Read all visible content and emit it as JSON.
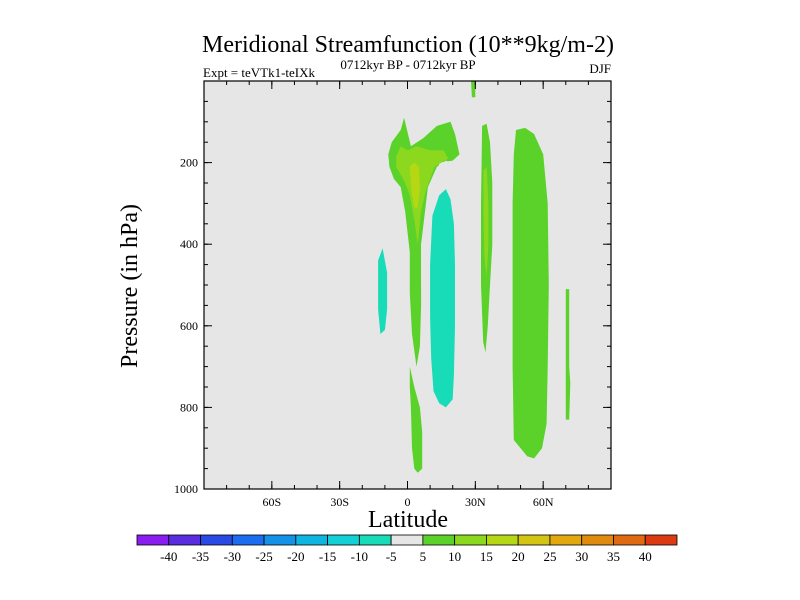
{
  "chart_data": {
    "type": "contour",
    "title": "Meridional Streamfunction (10**9kg/m-2)",
    "left_string": "Expt = teVTk1-teIXk",
    "center_string": "0712kyr BP - 0712kyr BP",
    "right_string": "DJF",
    "xlabel": "Latitude",
    "ylabel": "Pressure (in hPa)",
    "xlim": [
      -90,
      90
    ],
    "ylim": [
      1000,
      0
    ],
    "x_ticks": [
      {
        "value": -60,
        "label": "60S"
      },
      {
        "value": -30,
        "label": "30S"
      },
      {
        "value": 0,
        "label": "0"
      },
      {
        "value": 30,
        "label": "30N"
      },
      {
        "value": 60,
        "label": "60N"
      }
    ],
    "y_ticks": [
      {
        "value": 200,
        "label": "200"
      },
      {
        "value": 400,
        "label": "400"
      },
      {
        "value": 600,
        "label": "600"
      },
      {
        "value": 800,
        "label": "800"
      },
      {
        "value": 1000,
        "label": "1000"
      }
    ],
    "y_minor_step": 50,
    "x_minor_step": 10,
    "background_color": "#e6e6e6",
    "colorbar": {
      "levels": [
        -40,
        -35,
        -30,
        -25,
        -20,
        -15,
        -10,
        -5,
        5,
        10,
        15,
        20,
        25,
        30,
        35,
        40
      ],
      "labels": [
        "-40",
        "-35",
        "-30",
        "-25",
        "-20",
        "-15",
        "-10",
        "-5",
        "5",
        "10",
        "15",
        "20",
        "25",
        "30",
        "35",
        "40"
      ],
      "colors": [
        "#8a1ef0",
        "#5a2ee0",
        "#2a4ae6",
        "#1a6cf0",
        "#1492e8",
        "#10b4e0",
        "#12d0d6",
        "#18dcb8",
        "#e6e6e6",
        "#5ad22a",
        "#8cd81e",
        "#b6d814",
        "#d4c414",
        "#e2a80e",
        "#e08a0e",
        "#e06a12",
        "#dc3a10"
      ]
    },
    "regions": [
      {
        "name": "region-sh-thin-1",
        "value": -5,
        "polygon": [
          [
            -66.5,
            50
          ],
          [
            -65,
            50
          ],
          [
            -64.5,
            300
          ],
          [
            -64.5,
            600
          ],
          [
            -65,
            810
          ],
          [
            -66,
            800
          ],
          [
            -66.5,
            600
          ],
          [
            -66.5,
            300
          ]
        ]
      },
      {
        "name": "region-sh-thin-2",
        "value": -5,
        "polygon": [
          [
            -64.5,
            -10
          ],
          [
            -61.5,
            -10
          ],
          [
            -61.5,
            300
          ],
          [
            -62,
            700
          ],
          [
            -62.2,
            900
          ],
          [
            -63,
            920
          ],
          [
            -63.5,
            880
          ],
          [
            -64,
            700
          ],
          [
            -64.2,
            400
          ],
          [
            -64.5,
            100
          ]
        ]
      },
      {
        "name": "region-sh-cell",
        "value": -5,
        "polygon": [
          [
            -16.5,
            190
          ],
          [
            -12,
            185
          ],
          [
            -8,
            210
          ],
          [
            -4,
            280
          ],
          [
            -1.5,
            360
          ],
          [
            0,
            450
          ],
          [
            0.5,
            550
          ],
          [
            -1.5,
            640
          ],
          [
            -2,
            740
          ],
          [
            -6.5,
            800
          ],
          [
            -10.5,
            860
          ],
          [
            -11.8,
            850
          ],
          [
            -13.5,
            810
          ],
          [
            -15,
            760
          ],
          [
            -16,
            700
          ],
          [
            -16.5,
            600
          ],
          [
            -17,
            500
          ],
          [
            -17,
            400
          ],
          [
            -16.8,
            300
          ],
          [
            -16.8,
            240
          ]
        ]
      },
      {
        "name": "region-sh-cell-core",
        "value": -10,
        "polygon": [
          [
            -13,
            440
          ],
          [
            -11,
            410
          ],
          [
            -9,
            470
          ],
          [
            -9,
            560
          ],
          [
            -10,
            610
          ],
          [
            -12,
            620
          ],
          [
            -13,
            560
          ]
        ]
      },
      {
        "name": "region-eq-low",
        "value": 5,
        "polygon": [
          [
            1,
            700
          ],
          [
            3,
            750
          ],
          [
            5.5,
            800
          ],
          [
            6.5,
            860
          ],
          [
            6.5,
            950
          ],
          [
            4.5,
            960
          ],
          [
            3,
            950
          ],
          [
            2,
            900
          ],
          [
            1.5,
            800
          ],
          [
            1,
            750
          ]
        ]
      },
      {
        "name": "region-eq-tower",
        "value": 5,
        "polygon": [
          [
            -1.5,
            90
          ],
          [
            1.5,
            160
          ],
          [
            7,
            140
          ],
          [
            13,
            110
          ],
          [
            19,
            100
          ],
          [
            21,
            130
          ],
          [
            23,
            180
          ],
          [
            20,
            195
          ],
          [
            14,
            200
          ],
          [
            13,
            250
          ],
          [
            11,
            280
          ],
          [
            8,
            330
          ],
          [
            6,
            400
          ],
          [
            6,
            550
          ],
          [
            5.5,
            650
          ],
          [
            4,
            700
          ],
          [
            2,
            620
          ],
          [
            1,
            520
          ],
          [
            1,
            420
          ],
          [
            -1,
            320
          ],
          [
            -3,
            260
          ],
          [
            -6,
            240
          ],
          [
            -8,
            210
          ],
          [
            -8.5,
            180
          ],
          [
            -7,
            150
          ],
          [
            -3,
            120
          ]
        ]
      },
      {
        "name": "region-eq-tower-core",
        "value": 10,
        "polygon": [
          [
            -3,
            160
          ],
          [
            0,
            170
          ],
          [
            4,
            160
          ],
          [
            10,
            170
          ],
          [
            16,
            170
          ],
          [
            18,
            190
          ],
          [
            12,
            210
          ],
          [
            10,
            240
          ],
          [
            8,
            270
          ],
          [
            6,
            320
          ],
          [
            4.5,
            400
          ],
          [
            3,
            340
          ],
          [
            1,
            280
          ],
          [
            -1,
            250
          ],
          [
            -3,
            230
          ],
          [
            -5,
            210
          ],
          [
            -5,
            185
          ]
        ]
      },
      {
        "name": "region-eq-tower-peak",
        "value": 15,
        "polygon": [
          [
            1,
            210
          ],
          [
            3,
            200
          ],
          [
            5,
            210
          ],
          [
            5.5,
            260
          ],
          [
            4.5,
            310
          ],
          [
            3,
            310
          ],
          [
            1.8,
            270
          ]
        ]
      },
      {
        "name": "region-nh-hadley",
        "value": -5,
        "polygon": [
          [
            9,
            260
          ],
          [
            13,
            210
          ],
          [
            17,
            195
          ],
          [
            19,
            200
          ],
          [
            22,
            240
          ],
          [
            24,
            300
          ],
          [
            24,
            500
          ],
          [
            23.5,
            600
          ],
          [
            24,
            700
          ],
          [
            24.5,
            800
          ],
          [
            23,
            900
          ],
          [
            22.5,
            940
          ],
          [
            20,
            945
          ],
          [
            17,
            935
          ],
          [
            15,
            920
          ],
          [
            12,
            920
          ],
          [
            9.5,
            900
          ],
          [
            8,
            700
          ],
          [
            7,
            600
          ],
          [
            6,
            500
          ],
          [
            6,
            400
          ],
          [
            7.5,
            330
          ]
        ]
      },
      {
        "name": "region-nh-hadley-core",
        "value": -10,
        "polygon": [
          [
            11,
            330
          ],
          [
            14,
            280
          ],
          [
            17,
            265
          ],
          [
            19,
            290
          ],
          [
            20.5,
            350
          ],
          [
            21,
            450
          ],
          [
            21,
            600
          ],
          [
            20.5,
            720
          ],
          [
            20,
            780
          ],
          [
            17,
            800
          ],
          [
            14,
            790
          ],
          [
            11.5,
            760
          ],
          [
            10.5,
            680
          ],
          [
            10,
            580
          ],
          [
            10,
            450
          ]
        ]
      },
      {
        "name": "region-nh-strip-top",
        "value": -5,
        "polygon": [
          [
            35.5,
            -10
          ],
          [
            37.5,
            -10
          ],
          [
            37.5,
            100
          ],
          [
            36.5,
            100
          ]
        ]
      },
      {
        "name": "region-nh-column",
        "value": 5,
        "polygon": [
          [
            33,
            110
          ],
          [
            35,
            105
          ],
          [
            36.5,
            150
          ],
          [
            37.5,
            250
          ],
          [
            37.5,
            400
          ],
          [
            36.5,
            500
          ],
          [
            35.5,
            600
          ],
          [
            34.5,
            665
          ],
          [
            33.5,
            640
          ],
          [
            32.5,
            500
          ],
          [
            32.5,
            300
          ]
        ]
      },
      {
        "name": "region-nh-column-core",
        "value": 10,
        "polygon": [
          [
            33.6,
            220
          ],
          [
            35,
            210
          ],
          [
            35.8,
            300
          ],
          [
            35.8,
            400
          ],
          [
            35,
            480
          ],
          [
            34,
            430
          ],
          [
            33.6,
            330
          ]
        ]
      },
      {
        "name": "region-eq-top-sliver",
        "value": 5,
        "polygon": [
          [
            28,
            -10
          ],
          [
            30,
            -10
          ],
          [
            30,
            40
          ],
          [
            28.5,
            40
          ]
        ]
      },
      {
        "name": "region-nh-ferrel",
        "value": 5,
        "polygon": [
          [
            48,
            120
          ],
          [
            52,
            115
          ],
          [
            56,
            130
          ],
          [
            60,
            180
          ],
          [
            62,
            300
          ],
          [
            62.5,
            500
          ],
          [
            62,
            700
          ],
          [
            61.5,
            840
          ],
          [
            59.5,
            900
          ],
          [
            56,
            925
          ],
          [
            53,
            920
          ],
          [
            50,
            900
          ],
          [
            47,
            880
          ],
          [
            46.5,
            700
          ],
          [
            46.5,
            500
          ],
          [
            46.5,
            300
          ],
          [
            47,
            180
          ]
        ]
      },
      {
        "name": "region-nh-polar",
        "value": 5,
        "polygon": [
          [
            70,
            510
          ],
          [
            71.5,
            510
          ],
          [
            71.5,
            700
          ],
          [
            72,
            740
          ],
          [
            71.5,
            830
          ],
          [
            70,
            830
          ],
          [
            70,
            700
          ]
        ]
      }
    ]
  }
}
